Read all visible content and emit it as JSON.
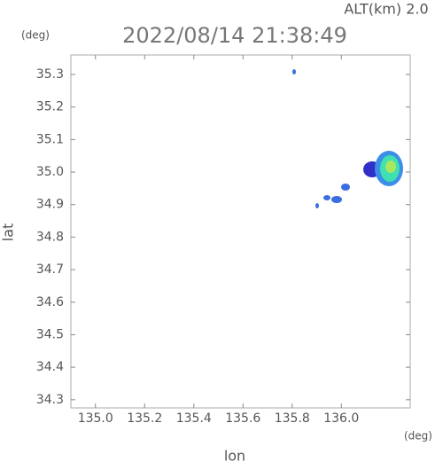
{
  "chart_data": {
    "type": "radar-map",
    "title": "2022/08/14 21:38:49",
    "subtitle": "ALT(km) 2.0",
    "x_label": "lon",
    "y_label": "lat",
    "x_unit": "(deg)",
    "y_unit": "(deg)",
    "xlim": [
      134.9,
      136.28
    ],
    "ylim": [
      34.275,
      35.36
    ],
    "xticks": [
      {
        "value": 135,
        "label": "135.0"
      },
      135.2,
      135.4,
      135.6,
      135.8,
      {
        "value": 136,
        "label": "136.0"
      }
    ],
    "yticks": [
      35.3,
      35.2,
      35.1,
      {
        "value": 35,
        "label": "35.0"
      },
      34.9,
      34.8,
      34.7,
      34.6,
      34.5,
      34.4,
      34.3
    ]
  }
}
